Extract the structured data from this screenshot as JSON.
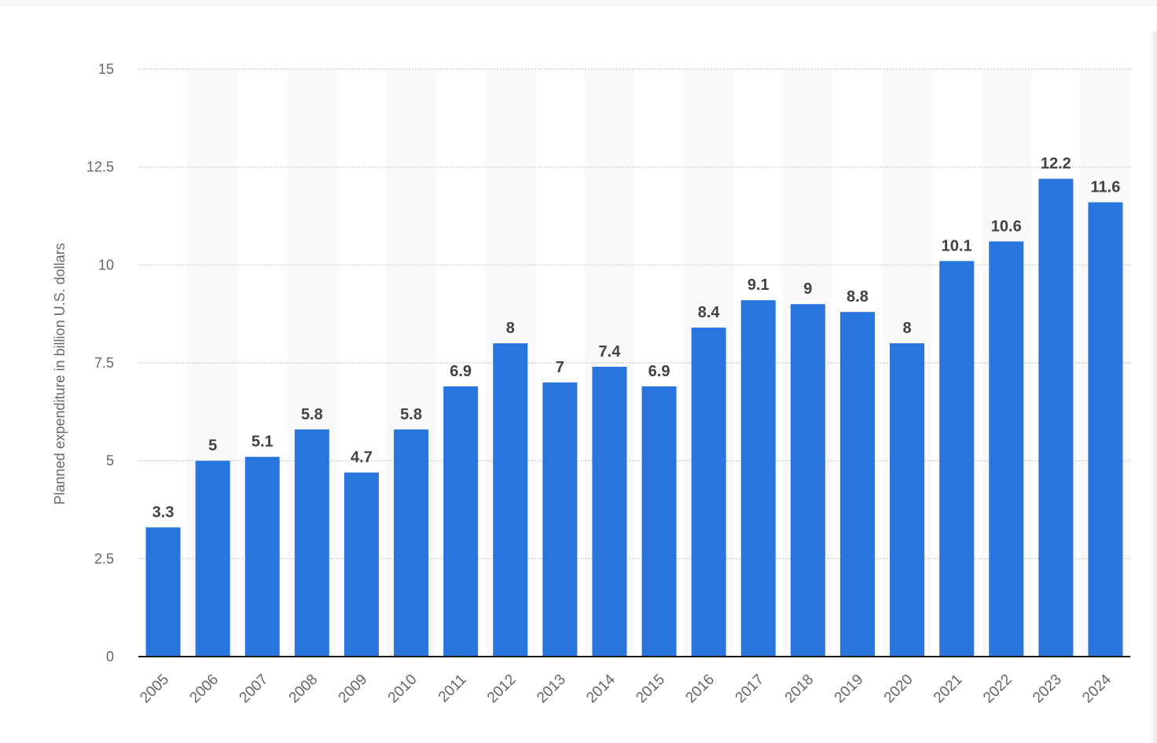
{
  "chart_data": {
    "type": "bar",
    "title": "",
    "xlabel": "",
    "ylabel": "Planned expenditure in billion U.S. dollars",
    "categories": [
      "2005",
      "2006",
      "2007",
      "2008",
      "2009",
      "2010",
      "2011",
      "2012",
      "2013",
      "2014",
      "2015",
      "2016",
      "2017",
      "2018",
      "2019",
      "2020",
      "2021",
      "2022",
      "2023",
      "2024"
    ],
    "values": [
      3.3,
      5,
      5.1,
      5.8,
      4.7,
      5.8,
      6.9,
      8,
      7,
      7.4,
      6.9,
      8.4,
      9.1,
      9,
      8.8,
      8,
      10.1,
      10.6,
      12.2,
      11.6
    ],
    "data_labels": [
      "3.3",
      "5",
      "5.1",
      "5.8",
      "4.7",
      "5.8",
      "6.9",
      "8",
      "7",
      "7.4",
      "6.9",
      "8.4",
      "9.1",
      "9",
      "8.8",
      "8",
      "10.1",
      "10.6",
      "12.2",
      "11.6"
    ],
    "ylim": [
      0,
      15
    ],
    "yticks": [
      0,
      2.5,
      5,
      7.5,
      10,
      12.5,
      15
    ],
    "ytick_labels": [
      "0",
      "2.5",
      "5",
      "7.5",
      "10",
      "12.5",
      "15"
    ],
    "grid": true,
    "legend": "none",
    "colors": {
      "bar": "#2876dd",
      "grid": "#c8c8c8",
      "band": "#f9f9f9",
      "axis_text": "#666666",
      "label_text": "#414141",
      "baseline": "#1a1a1a"
    }
  }
}
